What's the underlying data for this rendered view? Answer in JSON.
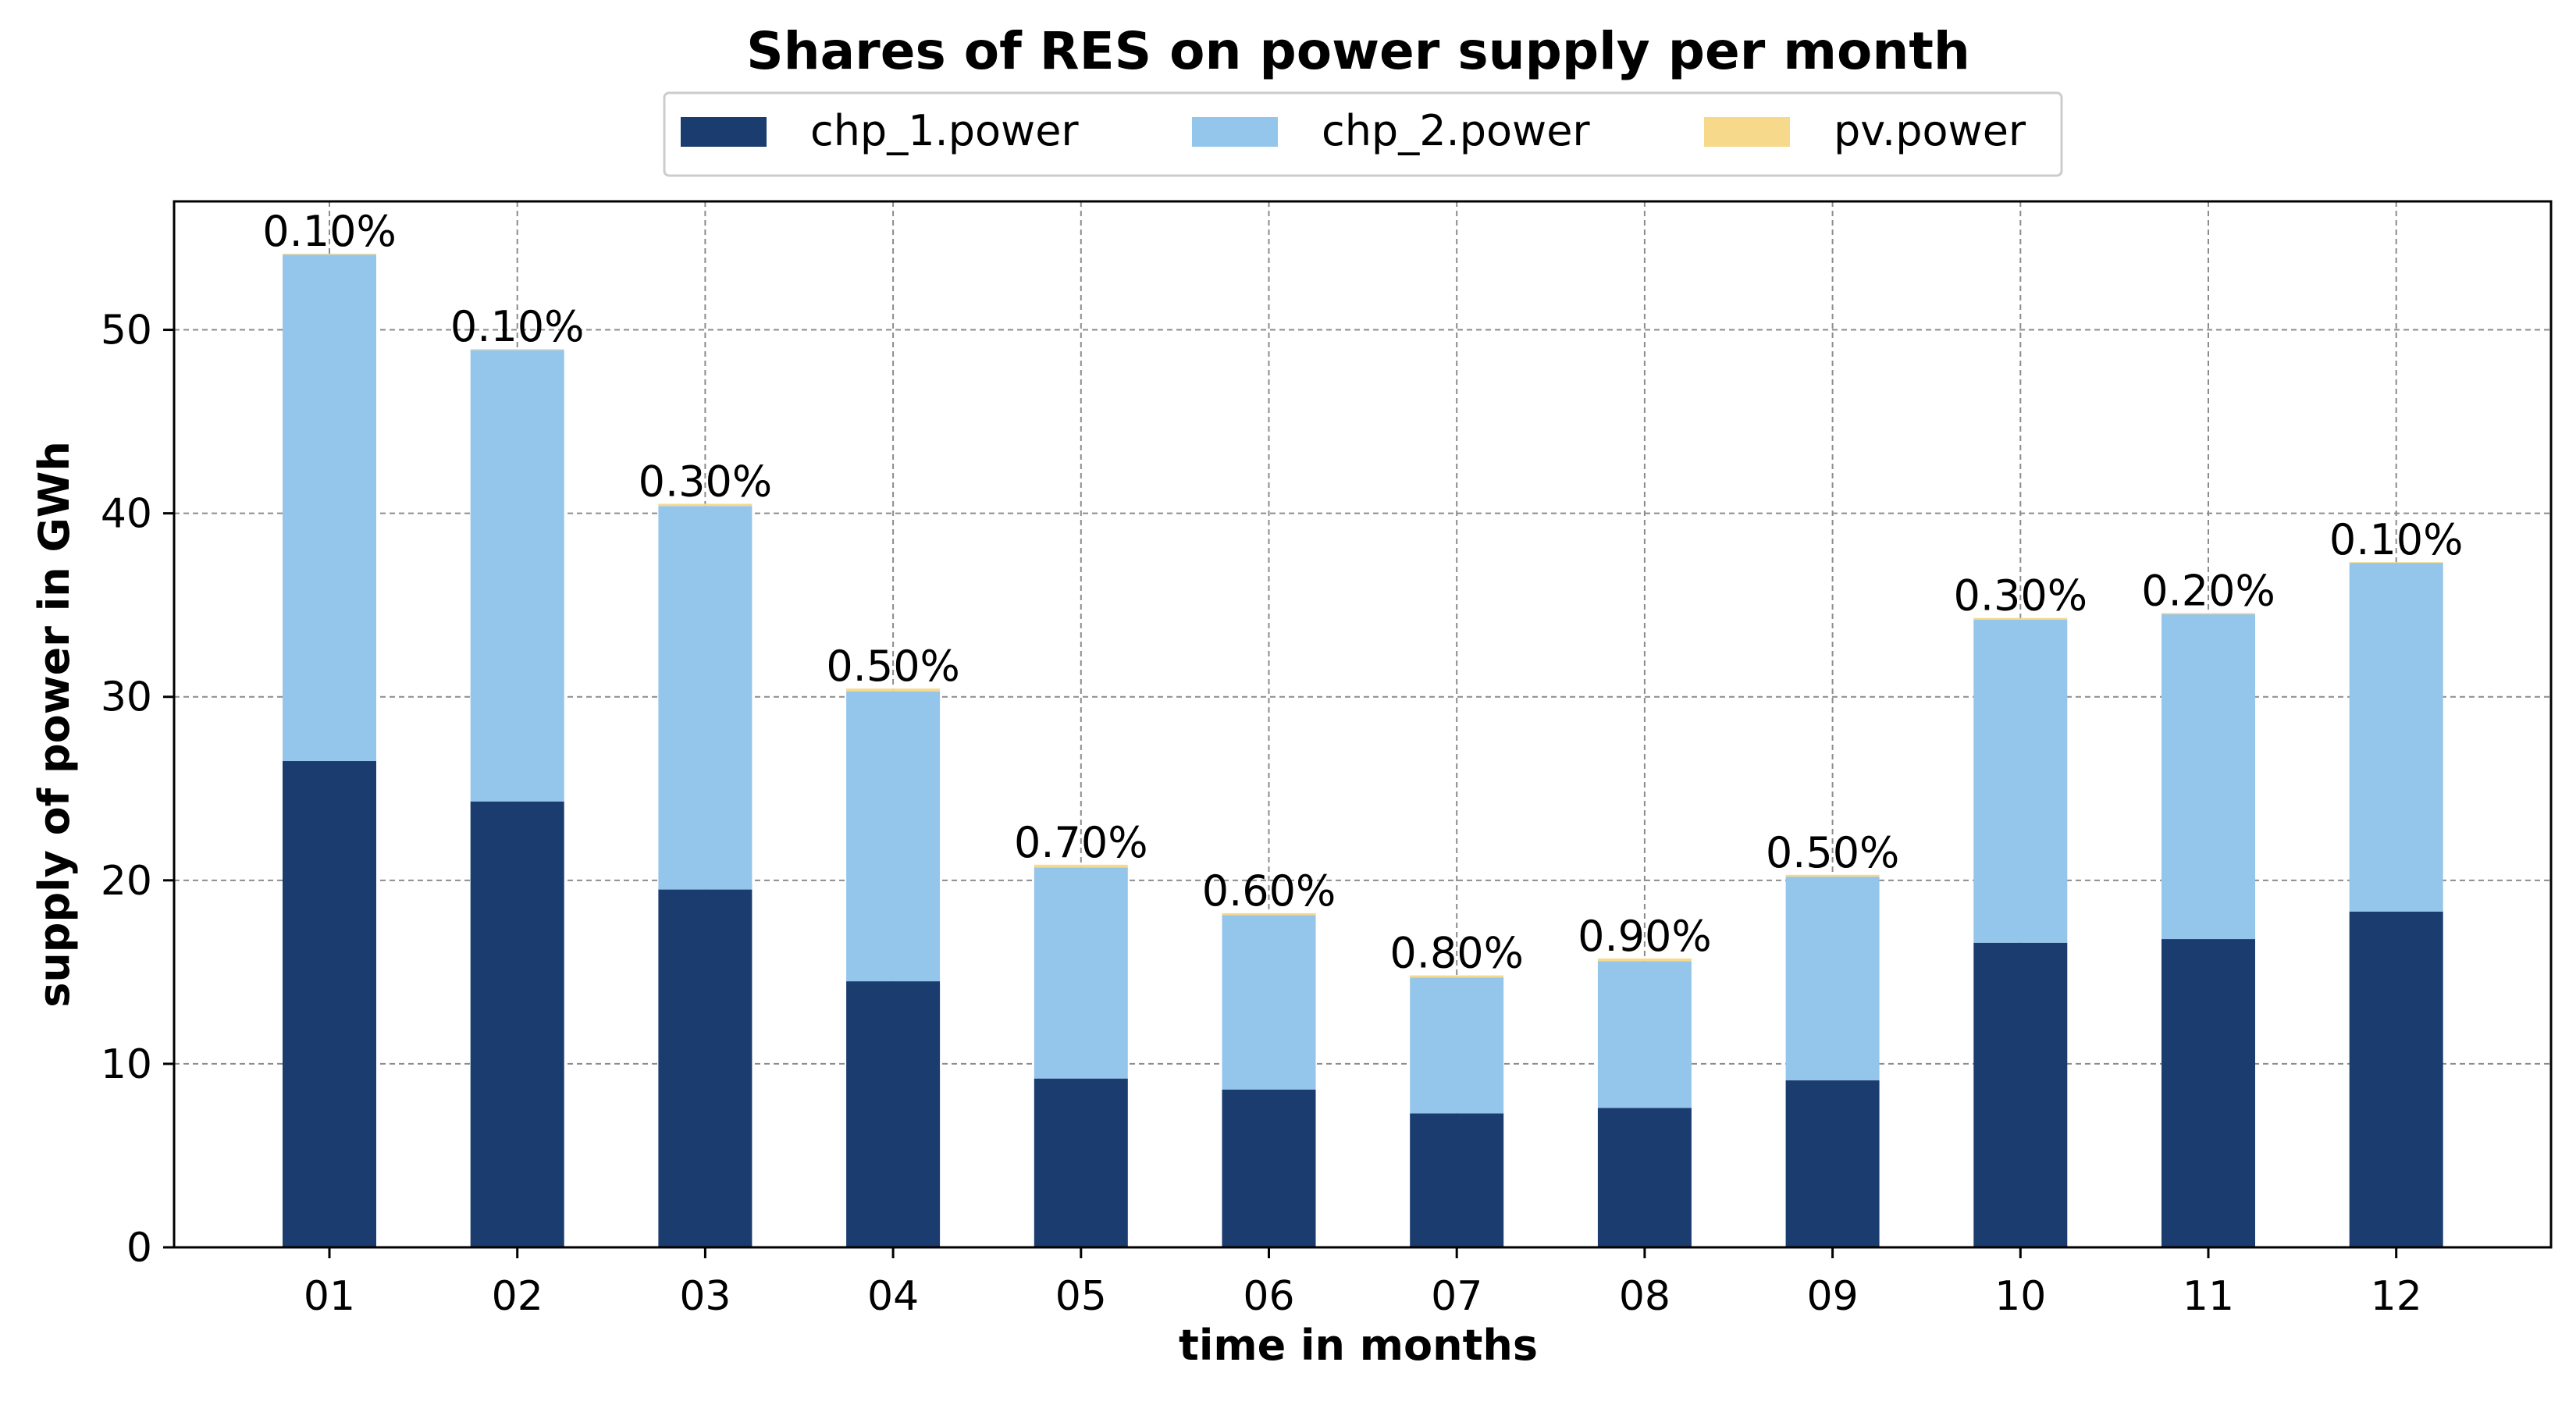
{
  "chart_data": {
    "type": "bar",
    "stacked": true,
    "title": "Shares of RES on power supply per month",
    "xlabel": "time in months",
    "ylabel": "supply of power in GWh",
    "categories": [
      "01",
      "02",
      "03",
      "04",
      "05",
      "06",
      "07",
      "08",
      "09",
      "10",
      "11",
      "12"
    ],
    "ylim": [
      0,
      57
    ],
    "yticks": [
      0,
      10,
      20,
      30,
      40,
      50
    ],
    "grid": true,
    "legend_position": "top-center",
    "series": [
      {
        "name": "chp_1.power",
        "color": "#1a3c6e",
        "values": [
          26.5,
          24.3,
          19.5,
          14.5,
          9.2,
          8.6,
          7.3,
          7.6,
          9.1,
          16.6,
          16.8,
          18.3
        ]
      },
      {
        "name": "chp_2.power",
        "color": "#94c6eb",
        "values": [
          27.6,
          24.6,
          20.9,
          15.8,
          11.5,
          9.5,
          7.4,
          8.0,
          11.1,
          17.6,
          17.7,
          19.0
        ]
      },
      {
        "name": "pv.power",
        "color": "#f7d98b",
        "values": [
          0.05,
          0.05,
          0.12,
          0.15,
          0.15,
          0.11,
          0.12,
          0.14,
          0.1,
          0.1,
          0.07,
          0.04
        ]
      }
    ],
    "bar_labels": [
      "0.10%",
      "0.10%",
      "0.30%",
      "0.50%",
      "0.70%",
      "0.60%",
      "0.80%",
      "0.90%",
      "0.50%",
      "0.30%",
      "0.20%",
      "0.10%"
    ]
  }
}
